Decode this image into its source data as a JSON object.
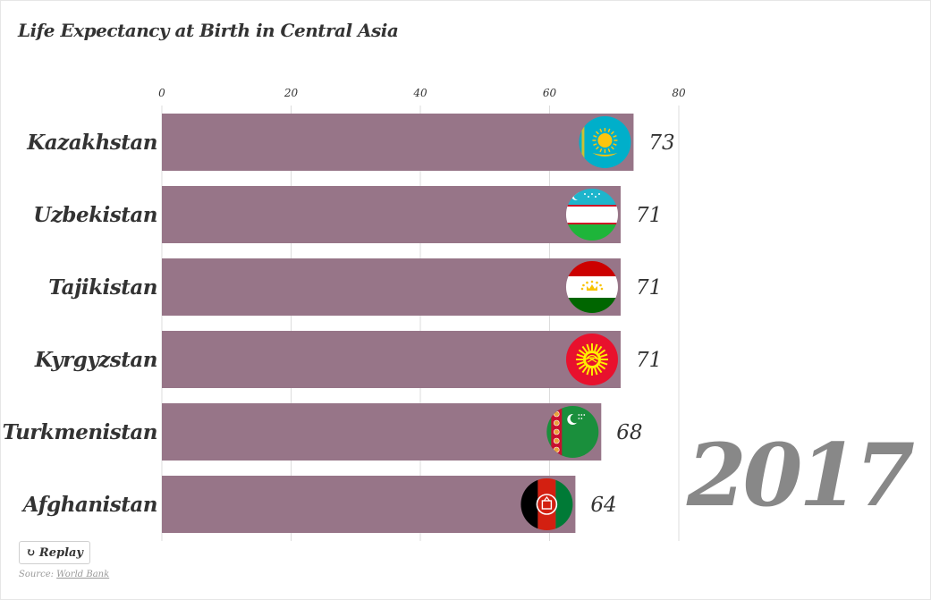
{
  "header": {
    "title": "Life Expectancy at Birth in Central Asia"
  },
  "year": "2017",
  "controls": {
    "replay_label": "Replay"
  },
  "source": {
    "prefix": "Source:",
    "link_text": "World Bank"
  },
  "colors": {
    "bar": "#977588",
    "grid": "#dddddd",
    "text": "#333333",
    "year": "#888888"
  },
  "chart_data": {
    "type": "bar",
    "orientation": "horizontal",
    "categories": [
      "Kazakhstan",
      "Uzbekistan",
      "Tajikistan",
      "Kyrgyzstan",
      "Turkmenistan",
      "Afghanistan"
    ],
    "values": [
      73,
      71,
      71,
      71,
      68,
      64
    ],
    "value_labels": [
      "73",
      "71",
      "71",
      "71",
      "68",
      "64"
    ],
    "xlim": [
      0,
      80
    ],
    "xticks": [
      0,
      20,
      40,
      60,
      80
    ],
    "xtick_labels": [
      "0",
      "20",
      "40",
      "60",
      "80"
    ],
    "grid": true,
    "flags": [
      "kazakhstan-flag-icon",
      "uzbekistan-flag-icon",
      "tajikistan-flag-icon",
      "kyrgyzstan-flag-icon",
      "turkmenistan-flag-icon",
      "afghanistan-flag-icon"
    ]
  }
}
